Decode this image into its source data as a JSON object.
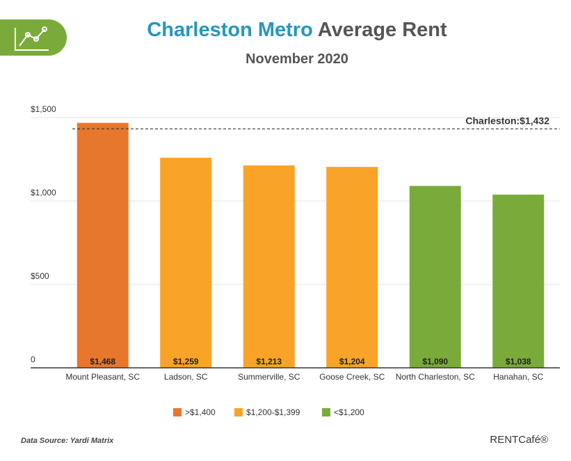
{
  "chart_data": {
    "type": "bar",
    "title_highlight": "Charleston Metro",
    "title_rest": "Average Rent",
    "subtitle": "November 2020",
    "categories": [
      "Mount Pleasant, SC",
      "Ladson, SC",
      "Summerville, SC",
      "Goose Creek, SC",
      "North Charleston, SC",
      "Hanahan, SC"
    ],
    "values": [
      1468,
      1259,
      1213,
      1204,
      1090,
      1038
    ],
    "value_labels": [
      "$1,468",
      "$1,259",
      "$1,213",
      "$1,204",
      "$1,090",
      "$1,038"
    ],
    "colors": [
      "#e8772e",
      "#f9a428",
      "#f9a428",
      "#f9a428",
      "#7aab3a",
      "#7aab3a"
    ],
    "ylim": [
      0,
      1500
    ],
    "yticks": [
      0,
      {
        "value": 500,
        "label": "$500"
      },
      {
        "value": 1000,
        "label": "$1,000"
      },
      {
        "value": 1500,
        "label": "$1,500"
      }
    ],
    "grid": true,
    "reference_line": {
      "value": 1432,
      "label": "Charleston:$1,432"
    },
    "legend": [
      {
        "label": ">$1,400",
        "color": "#e8772e"
      },
      {
        "label": "$1,200-$1,399",
        "color": "#f9a428"
      },
      {
        "label": "<$1,200",
        "color": "#7aab3a"
      }
    ],
    "source": "Data Source: Yardi Matrix",
    "brand": "RENTCafé®"
  }
}
